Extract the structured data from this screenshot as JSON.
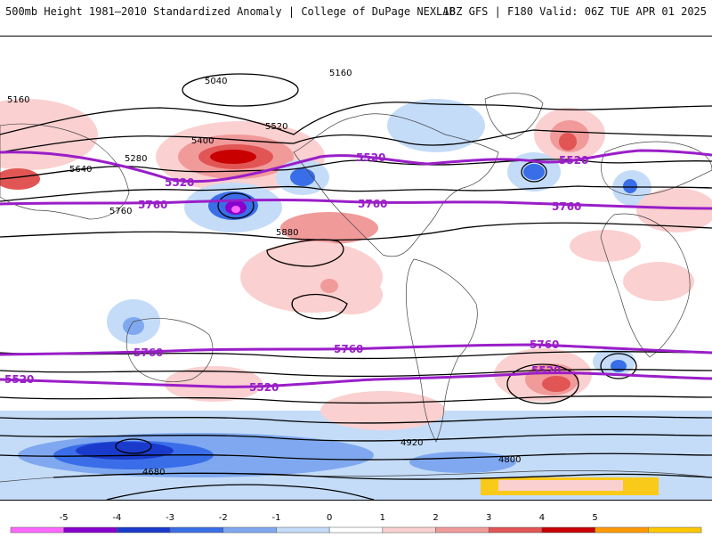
{
  "header": {
    "title_left": "500mb Height 1981–2010 Standardized Anomaly | College of DuPage NEXLAB",
    "title_right": "18Z GFS | F180 Valid: 06Z TUE APR 01 2025"
  },
  "map": {
    "contour_labels": [
      "5040",
      "5160",
      "5160",
      "5280",
      "5400",
      "5520",
      "5640",
      "5760",
      "5880",
      "4920",
      "4800",
      "4680"
    ],
    "highlight_contours": [
      "5520",
      "5760"
    ]
  },
  "colorbar": {
    "ticks": [
      "-5",
      "-4",
      "-3",
      "-2",
      "-1",
      "0",
      "1",
      "2",
      "3",
      "4",
      "5"
    ],
    "colors": [
      "#ff66ff",
      "#8800cc",
      "#1a3acc",
      "#3a6ee8",
      "#7fa8f0",
      "#c4dcf8",
      "#ffffff",
      "#fbd0d0",
      "#f19a9a",
      "#e25555",
      "#c80000",
      "#ff9900",
      "#ffc800"
    ]
  }
}
